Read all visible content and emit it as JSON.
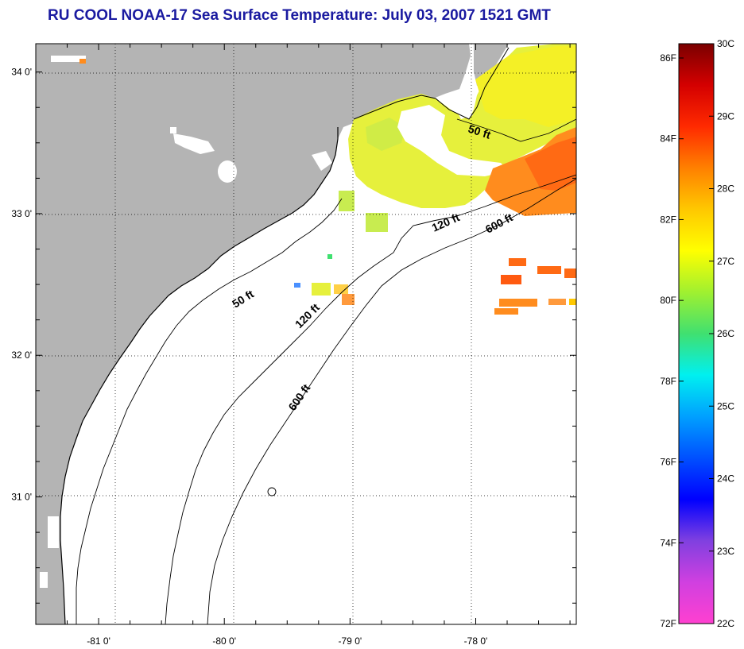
{
  "title": "RU COOL  NOAA-17  Sea Surface Temperature:  July 03, 2007 1521 GMT",
  "map": {
    "lon_range": [
      -81.5,
      -77.2
    ],
    "lat_range": [
      30.1,
      34.2
    ],
    "lon_ticks": [
      {
        "value": -81,
        "label": "-81 0'"
      },
      {
        "value": -80,
        "label": "-80 0'"
      },
      {
        "value": -79,
        "label": "-79 0'"
      },
      {
        "value": -78,
        "label": "-78 0'"
      }
    ],
    "lat_ticks": [
      {
        "value": 34,
        "label": "34 0'"
      },
      {
        "value": 33,
        "label": "33 0'"
      },
      {
        "value": 32,
        "label": "32 0'"
      },
      {
        "value": 31,
        "label": "31 0'"
      }
    ],
    "grid": "dotted",
    "land_color": "#b4b4b4",
    "depth_labels": [
      "50 ft",
      "120 ft",
      "600 ft",
      "50 ft",
      "120 ft",
      "600 ft"
    ]
  },
  "colorbar": {
    "fahrenheit": [
      "86F",
      "84F",
      "82F",
      "80F",
      "78F",
      "76F",
      "74F",
      "72F"
    ],
    "celsius": [
      "30C",
      "29C",
      "28C",
      "27C",
      "26C",
      "25C",
      "24C",
      "23C",
      "22C"
    ],
    "colors_top_to_bottom": [
      "#7a0000",
      "#d40000",
      "#ff2a00",
      "#ff8000",
      "#ffc800",
      "#ffff00",
      "#a0f030",
      "#40e070",
      "#00f0f0",
      "#00a0ff",
      "#0050ff",
      "#0000ff",
      "#8040e0",
      "#d040e0",
      "#ff40d0"
    ]
  }
}
